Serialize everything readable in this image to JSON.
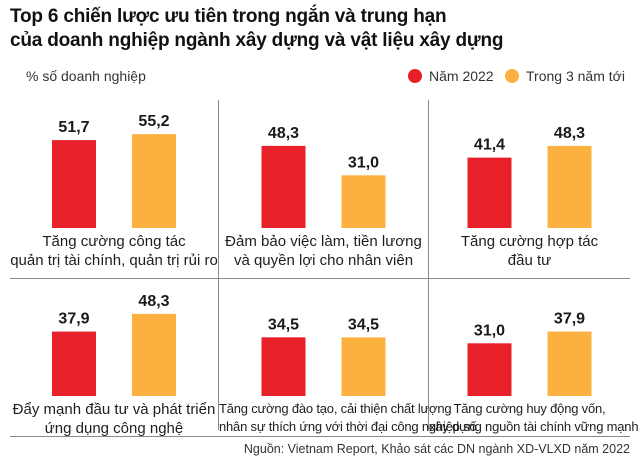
{
  "title": {
    "line1": "Top 6 chiến lược ưu tiên trong ngắn và trung hạn",
    "line2": "của doanh nghiệp ngành xây dựng và vật liệu xây dựng"
  },
  "unit_label": "% số doanh nghiệp",
  "legend": [
    {
      "label": "Năm 2022",
      "color": "#e8202a"
    },
    {
      "label": "Trong 3 năm tới",
      "color": "#fbb040"
    }
  ],
  "source": "Nguồn: Vietnam Report, Khảo sát các DN ngành XD-VLXD năm 2022",
  "chart_data": {
    "type": "bar",
    "title": "Top 6 chiến lược ưu tiên trong ngắn và trung hạn của doanh nghiệp ngành xây dựng và vật liệu xây dựng",
    "ylabel": "% số doanh nghiệp",
    "xlabel": "",
    "ylim": [
      0,
      60
    ],
    "series_names": [
      "Năm 2022",
      "Trong 3 năm tới"
    ],
    "categories": [
      {
        "lines": [
          "Tăng cường công tác",
          "quản trị tài chính, quản trị rủi ro"
        ],
        "values": [
          51.7,
          55.2
        ]
      },
      {
        "lines": [
          "Đảm bảo việc làm, tiền lương",
          "và quyền lợi cho nhân viên"
        ],
        "values": [
          48.3,
          31.0
        ]
      },
      {
        "lines": [
          "Tăng cường hợp tác",
          "đầu tư"
        ],
        "values": [
          41.4,
          48.3
        ]
      },
      {
        "lines": [
          "Đẩy mạnh đầu tư và phát triển",
          "ứng dụng công nghệ"
        ],
        "values": [
          37.9,
          48.3
        ]
      },
      {
        "lines": [
          "Tăng cường đào tạo, cải thiện chất lượng",
          "nhân sự thích ứng với thời đại công nghiệp số"
        ],
        "values": [
          34.5,
          34.5
        ]
      },
      {
        "lines": [
          "Tăng cường huy động vốn,",
          "xây dựng nguồn tài chính vững mạnh"
        ],
        "values": [
          31.0,
          37.9
        ]
      }
    ]
  }
}
